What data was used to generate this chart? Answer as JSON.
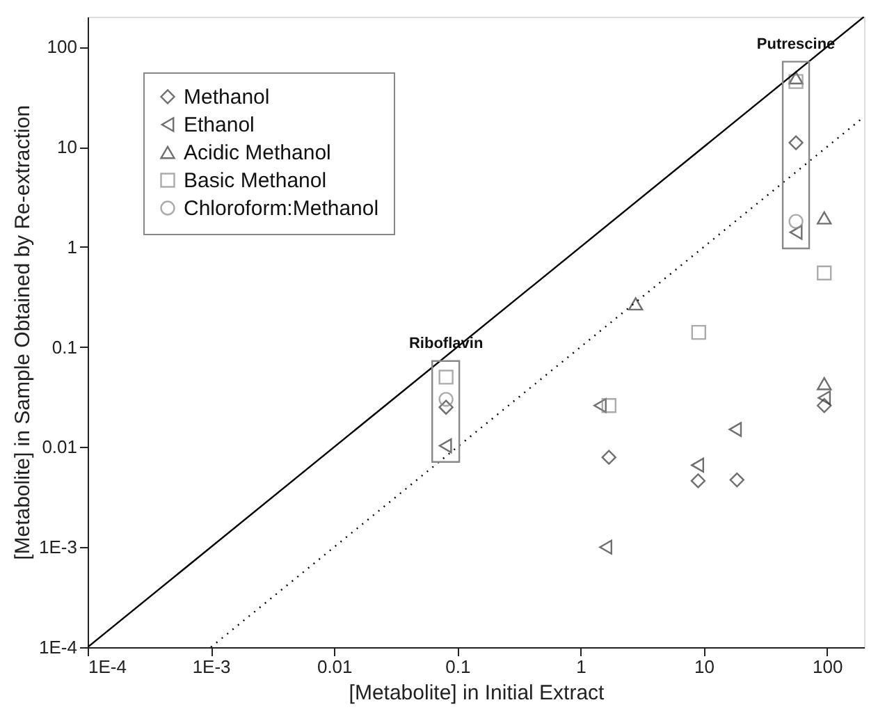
{
  "chart_data": {
    "type": "scatter",
    "xlabel": "[Metabolite] in Initial Extract",
    "ylabel": "[Metabolite] in Sample Obtained by Re-extraction",
    "log": "xy",
    "xlim": [
      0.0001,
      200
    ],
    "ylim": [
      0.0001,
      200
    ],
    "xticks": [
      {
        "value": 0.0001,
        "label": "1E-4"
      },
      {
        "value": 0.001,
        "label": "1E-3"
      },
      0.01,
      0.1,
      1,
      10,
      100
    ],
    "yticks": [
      {
        "value": 0.0001,
        "label": "1E-4"
      },
      {
        "value": 0.001,
        "label": "1E-3"
      },
      0.01,
      0.1,
      1,
      10,
      100
    ],
    "grid": false,
    "legend": "top left",
    "series": [
      {
        "name": "Methanol",
        "type": "scatter",
        "marker": "diamond",
        "color": "#333333",
        "x": [
          0.081,
          56,
          1.7,
          9,
          18.6,
          95
        ],
        "values": [
          0.025,
          11,
          0.0079,
          0.0046,
          0.0047,
          0.026
        ]
      },
      {
        "name": "Ethanol",
        "type": "scatter",
        "marker": "triangle-left",
        "color": "#333333",
        "x": [
          0.08,
          56,
          1.44,
          1.6,
          18,
          8.9,
          95
        ],
        "values": [
          0.0103,
          1.4,
          0.026,
          0.001,
          0.015,
          0.0066,
          0.031
        ]
      },
      {
        "name": "Acidic Methanol",
        "type": "scatter",
        "marker": "triangle",
        "color": "#333333",
        "x": [
          56,
          95,
          2.8,
          95
        ],
        "values": [
          49,
          1.95,
          0.27,
          0.043
        ]
      },
      {
        "name": "Basic Methanol",
        "type": "scatter",
        "marker": "square",
        "color": "#888888",
        "x": [
          0.081,
          95,
          9.1,
          1.7,
          56
        ],
        "values": [
          0.05,
          0.55,
          0.14,
          0.026,
          45
        ]
      },
      {
        "name": "Chloroform:Methanol",
        "type": "scatter",
        "marker": "circle",
        "color": "#888888",
        "x": [
          0.081,
          56
        ],
        "values": [
          0.03,
          1.8
        ]
      },
      {
        "type": "line",
        "line_style": "solid",
        "color": "#000000",
        "x": [
          0.0001,
          200
        ],
        "values": [
          0.0001,
          200
        ]
      },
      {
        "type": "line",
        "line_style": "dotted",
        "color": "#000000",
        "x": [
          0.001,
          200
        ],
        "values": [
          0.0001,
          20
        ]
      }
    ],
    "annotations": [
      {
        "text": "Riboflavin",
        "x": 0.081,
        "y": 0.05
      },
      {
        "text": "Putrescine",
        "x": 56,
        "y": 49
      }
    ]
  }
}
